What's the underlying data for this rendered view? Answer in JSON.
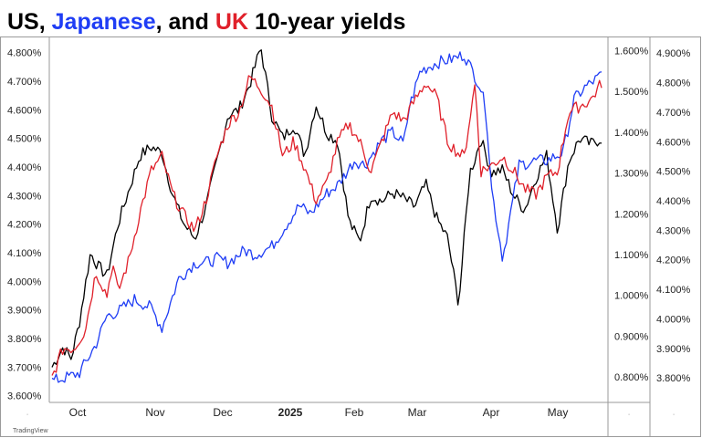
{
  "title": {
    "parts": [
      {
        "text": "US",
        "color": "#000000"
      },
      {
        "text": ", ",
        "color": "#000000"
      },
      {
        "text": "Japanese",
        "color": "#1f3df5"
      },
      {
        "text": ", and ",
        "color": "#000000"
      },
      {
        "text": "UK",
        "color": "#e0202a"
      },
      {
        "text": " 10-year yields",
        "color": "#000000"
      }
    ]
  },
  "watermark": "TradingView",
  "chart_data": {
    "type": "line",
    "x_ticks": [
      "Oct",
      "Nov",
      "Dec",
      "2025",
      "Feb",
      "Mar",
      "Apr",
      "May"
    ],
    "x_tick_bold": [
      false,
      false,
      false,
      true,
      false,
      false,
      false,
      false
    ],
    "axes": {
      "left": {
        "ticks": [
          "4.800%",
          "4.700%",
          "4.600%",
          "4.500%",
          "4.400%",
          "4.300%",
          "4.200%",
          "4.100%",
          "4.000%",
          "3.900%",
          "3.800%",
          "3.700%",
          "3.600%"
        ],
        "range": [
          3.58,
          4.85
        ]
      },
      "middle": {
        "ticks": [
          "1.600%",
          "1.500%",
          "1.400%",
          "1.300%",
          "1.200%",
          "1.100%",
          "1.000%",
          "0.900%",
          "0.800%"
        ],
        "range": [
          0.74,
          1.63
        ]
      },
      "right": {
        "ticks": [
          "4.900%",
          "4.800%",
          "4.700%",
          "4.600%",
          "4.500%",
          "4.400%",
          "4.300%",
          "4.200%",
          "4.100%",
          "4.000%",
          "3.900%",
          "3.800%"
        ],
        "range": [
          3.72,
          4.95
        ]
      }
    },
    "series": [
      {
        "color": "#000000",
        "axis": "left",
        "x": [
          0,
          0.02,
          0.035,
          0.05,
          0.07,
          0.085,
          0.1,
          0.12,
          0.14,
          0.16,
          0.18,
          0.2,
          0.22,
          0.24,
          0.26,
          0.28,
          0.3,
          0.32,
          0.34,
          0.36,
          0.38,
          0.4,
          0.42,
          0.44,
          0.46,
          0.48,
          0.5,
          0.52,
          0.54,
          0.56,
          0.58,
          0.6,
          0.62,
          0.64,
          0.66,
          0.68,
          0.7,
          0.72,
          0.74,
          0.76,
          0.77,
          0.78,
          0.8,
          0.82,
          0.84,
          0.86,
          0.88,
          0.9,
          0.92,
          0.94,
          0.96,
          0.98,
          1.0
        ],
        "y": [
          3.7,
          3.77,
          3.73,
          3.86,
          4.1,
          4.05,
          4.02,
          4.2,
          4.32,
          4.44,
          4.47,
          4.45,
          4.3,
          4.2,
          4.15,
          4.26,
          4.42,
          4.58,
          4.6,
          4.69,
          4.82,
          4.58,
          4.5,
          4.55,
          4.44,
          4.62,
          4.52,
          4.49,
          4.21,
          4.14,
          4.3,
          4.28,
          4.31,
          4.29,
          4.26,
          4.34,
          4.22,
          4.15,
          3.92,
          4.38,
          4.43,
          4.5,
          4.38,
          4.39,
          4.3,
          4.25,
          4.36,
          4.44,
          4.18,
          4.42,
          4.5,
          4.48,
          4.5
        ]
      },
      {
        "color": "#1f3df5",
        "axis": "middle",
        "x": [
          0,
          0.03,
          0.05,
          0.08,
          0.1,
          0.12,
          0.15,
          0.18,
          0.2,
          0.23,
          0.26,
          0.28,
          0.3,
          0.32,
          0.35,
          0.37,
          0.4,
          0.42,
          0.45,
          0.47,
          0.5,
          0.52,
          0.55,
          0.57,
          0.6,
          0.62,
          0.64,
          0.65,
          0.67,
          0.7,
          0.73,
          0.75,
          0.78,
          0.79,
          0.8,
          0.82,
          0.85,
          0.88,
          0.9,
          0.93,
          0.95,
          0.97,
          1.0
        ],
        "y": [
          0.79,
          0.8,
          0.81,
          0.88,
          0.95,
          0.96,
          0.99,
          0.97,
          0.92,
          1.04,
          1.08,
          1.08,
          1.09,
          1.08,
          1.11,
          1.1,
          1.12,
          1.16,
          1.22,
          1.2,
          1.25,
          1.27,
          1.33,
          1.32,
          1.38,
          1.4,
          1.37,
          1.46,
          1.55,
          1.57,
          1.58,
          1.59,
          1.51,
          1.45,
          1.26,
          1.09,
          1.32,
          1.33,
          1.33,
          1.35,
          1.48,
          1.51,
          1.54
        ]
      },
      {
        "color": "#e0202a",
        "axis": "right",
        "x": [
          0,
          0.02,
          0.04,
          0.06,
          0.08,
          0.1,
          0.11,
          0.12,
          0.14,
          0.16,
          0.18,
          0.2,
          0.22,
          0.24,
          0.26,
          0.28,
          0.3,
          0.32,
          0.34,
          0.36,
          0.38,
          0.4,
          0.42,
          0.44,
          0.46,
          0.48,
          0.5,
          0.52,
          0.54,
          0.56,
          0.58,
          0.6,
          0.62,
          0.64,
          0.66,
          0.68,
          0.7,
          0.72,
          0.74,
          0.75,
          0.77,
          0.78,
          0.8,
          0.82,
          0.84,
          0.86,
          0.88,
          0.9,
          0.92,
          0.94,
          0.96,
          0.98,
          1.0
        ],
        "y": [
          3.8,
          3.9,
          3.9,
          3.96,
          4.16,
          4.08,
          4.19,
          4.09,
          4.2,
          4.36,
          4.5,
          4.55,
          4.42,
          4.35,
          4.3,
          4.4,
          4.55,
          4.66,
          4.7,
          4.82,
          4.78,
          4.72,
          4.55,
          4.6,
          4.51,
          4.4,
          4.46,
          4.6,
          4.66,
          4.6,
          4.5,
          4.6,
          4.7,
          4.67,
          4.74,
          4.8,
          4.75,
          4.6,
          4.56,
          4.55,
          4.8,
          4.5,
          4.52,
          4.55,
          4.5,
          4.44,
          4.42,
          4.48,
          4.5,
          4.7,
          4.72,
          4.74,
          4.8
        ]
      }
    ],
    "grid": false,
    "legend": "none"
  }
}
